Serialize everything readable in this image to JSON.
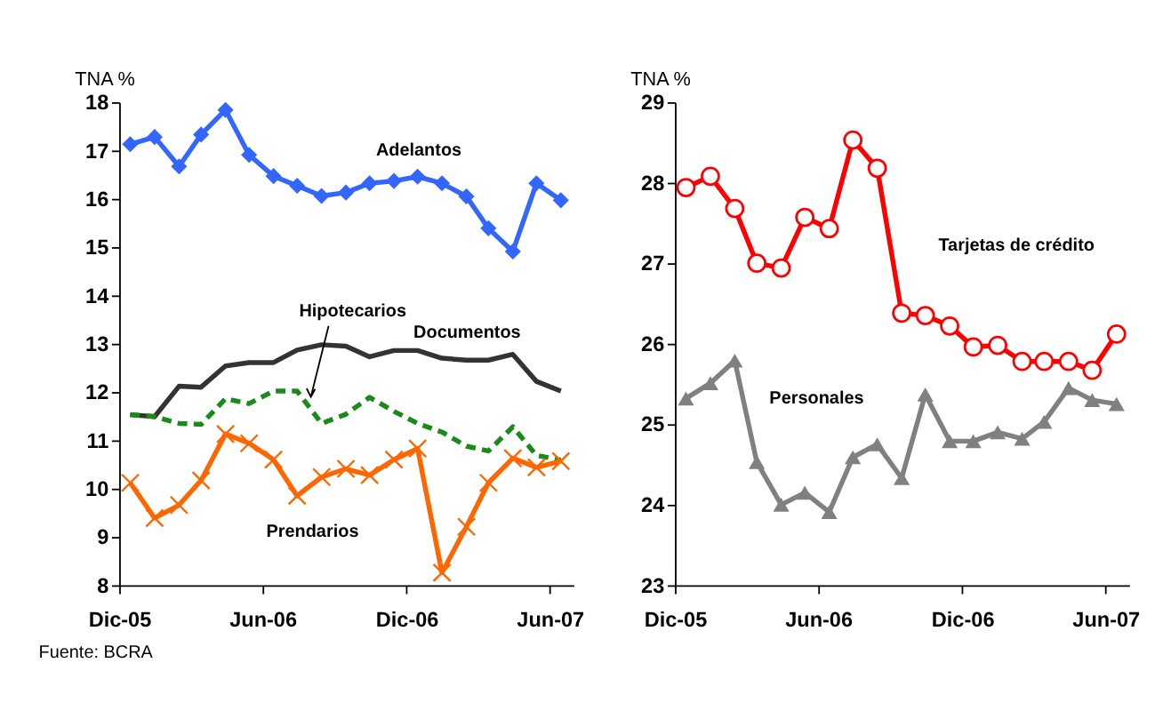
{
  "chart_data": [
    {
      "type": "line",
      "ylabel": "TNA %",
      "x": [
        "2005-12-15",
        "2006-01-15",
        "2006-02-15",
        "2006-03-15",
        "2006-04-15",
        "2006-05-15",
        "2006-06-15",
        "2006-07-15",
        "2006-08-15",
        "2006-09-15",
        "2006-10-15",
        "2006-11-15",
        "2006-12-15",
        "2007-01-15",
        "2007-02-15",
        "2007-03-15",
        "2007-04-15",
        "2007-05-15",
        "2007-06-15"
      ],
      "xlim": [
        "2005-12-01",
        "2007-07-01"
      ],
      "xticks": [
        {
          "value": "2005-12-01",
          "label": "Dic-05"
        },
        {
          "value": "2006-06-01",
          "label": "Jun-06"
        },
        {
          "value": "2006-12-01",
          "label": "Dic-06"
        },
        {
          "value": "2007-06-01",
          "label": "Jun-07"
        }
      ],
      "ylim": [
        8,
        18
      ],
      "yticks": [
        8,
        9,
        10,
        11,
        12,
        13,
        14,
        15,
        16,
        17,
        18
      ],
      "grid": false,
      "series": [
        {
          "name": "Adelantos",
          "color": "#3366ff",
          "marker": "diamond",
          "line_style": "solid",
          "values": [
            17.13,
            17.28,
            16.67,
            17.33,
            17.84,
            16.91,
            16.47,
            16.27,
            16.06,
            16.13,
            16.32,
            16.37,
            16.46,
            16.32,
            16.05,
            15.39,
            14.91,
            16.32,
            15.97
          ]
        },
        {
          "name": "Documentos",
          "color": "#333333",
          "marker": "none",
          "line_style": "solid",
          "values": [
            11.53,
            11.49,
            12.12,
            12.1,
            12.54,
            12.61,
            12.61,
            12.87,
            12.98,
            12.95,
            12.73,
            12.86,
            12.86,
            12.7,
            12.66,
            12.66,
            12.78,
            12.22,
            12.02
          ]
        },
        {
          "name": "Hipotecarios",
          "color": "#1a8a1a",
          "marker": "none",
          "line_style": "dashed",
          "values": [
            11.53,
            11.49,
            11.35,
            11.33,
            11.86,
            11.76,
            12.02,
            12.02,
            11.35,
            11.54,
            11.89,
            11.6,
            11.35,
            11.17,
            10.88,
            10.78,
            11.28,
            10.69,
            10.59
          ]
        },
        {
          "name": "Prendarios",
          "color": "#ff6600",
          "marker": "cross",
          "line_style": "solid",
          "values": [
            10.12,
            9.39,
            9.66,
            10.17,
            11.13,
            10.94,
            10.6,
            9.85,
            10.24,
            10.41,
            10.28,
            10.6,
            10.83,
            8.26,
            9.21,
            10.12,
            10.63,
            10.44,
            10.57
          ]
        }
      ],
      "annotations": [
        "Fuente: BCRA"
      ]
    },
    {
      "type": "line",
      "ylabel": "TNA %",
      "x": [
        "2005-12-15",
        "2006-01-15",
        "2006-02-15",
        "2006-03-15",
        "2006-04-15",
        "2006-05-15",
        "2006-06-15",
        "2006-07-15",
        "2006-08-15",
        "2006-09-15",
        "2006-10-15",
        "2006-11-15",
        "2006-12-15",
        "2007-01-15",
        "2007-02-15",
        "2007-03-15",
        "2007-04-15",
        "2007-05-15",
        "2007-06-15"
      ],
      "xlim": [
        "2005-12-01",
        "2007-07-01"
      ],
      "xticks": [
        {
          "value": "2005-12-01",
          "label": "Dic-05"
        },
        {
          "value": "2006-06-01",
          "label": "Jun-06"
        },
        {
          "value": "2006-12-01",
          "label": "Dic-06"
        },
        {
          "value": "2007-06-01",
          "label": "Jun-07"
        }
      ],
      "ylim": [
        23,
        29
      ],
      "yticks": [
        23,
        24,
        25,
        26,
        27,
        28,
        29
      ],
      "grid": false,
      "series": [
        {
          "name": "Tarjetas de crédito",
          "color": "#ff0000",
          "marker": "circle",
          "line_style": "solid",
          "values": [
            27.94,
            28.08,
            27.68,
            27.0,
            26.94,
            27.57,
            27.43,
            28.53,
            28.18,
            26.38,
            26.35,
            26.22,
            25.96,
            25.98,
            25.78,
            25.78,
            25.78,
            25.67,
            26.12
          ]
        },
        {
          "name": "Personales",
          "color": "#808080",
          "marker": "triangle",
          "line_style": "solid",
          "values": [
            25.32,
            25.51,
            25.79,
            24.53,
            24.0,
            24.15,
            23.91,
            24.59,
            24.75,
            24.33,
            25.37,
            24.79,
            24.79,
            24.9,
            24.82,
            25.03,
            25.45,
            25.3,
            25.25
          ]
        }
      ]
    }
  ]
}
